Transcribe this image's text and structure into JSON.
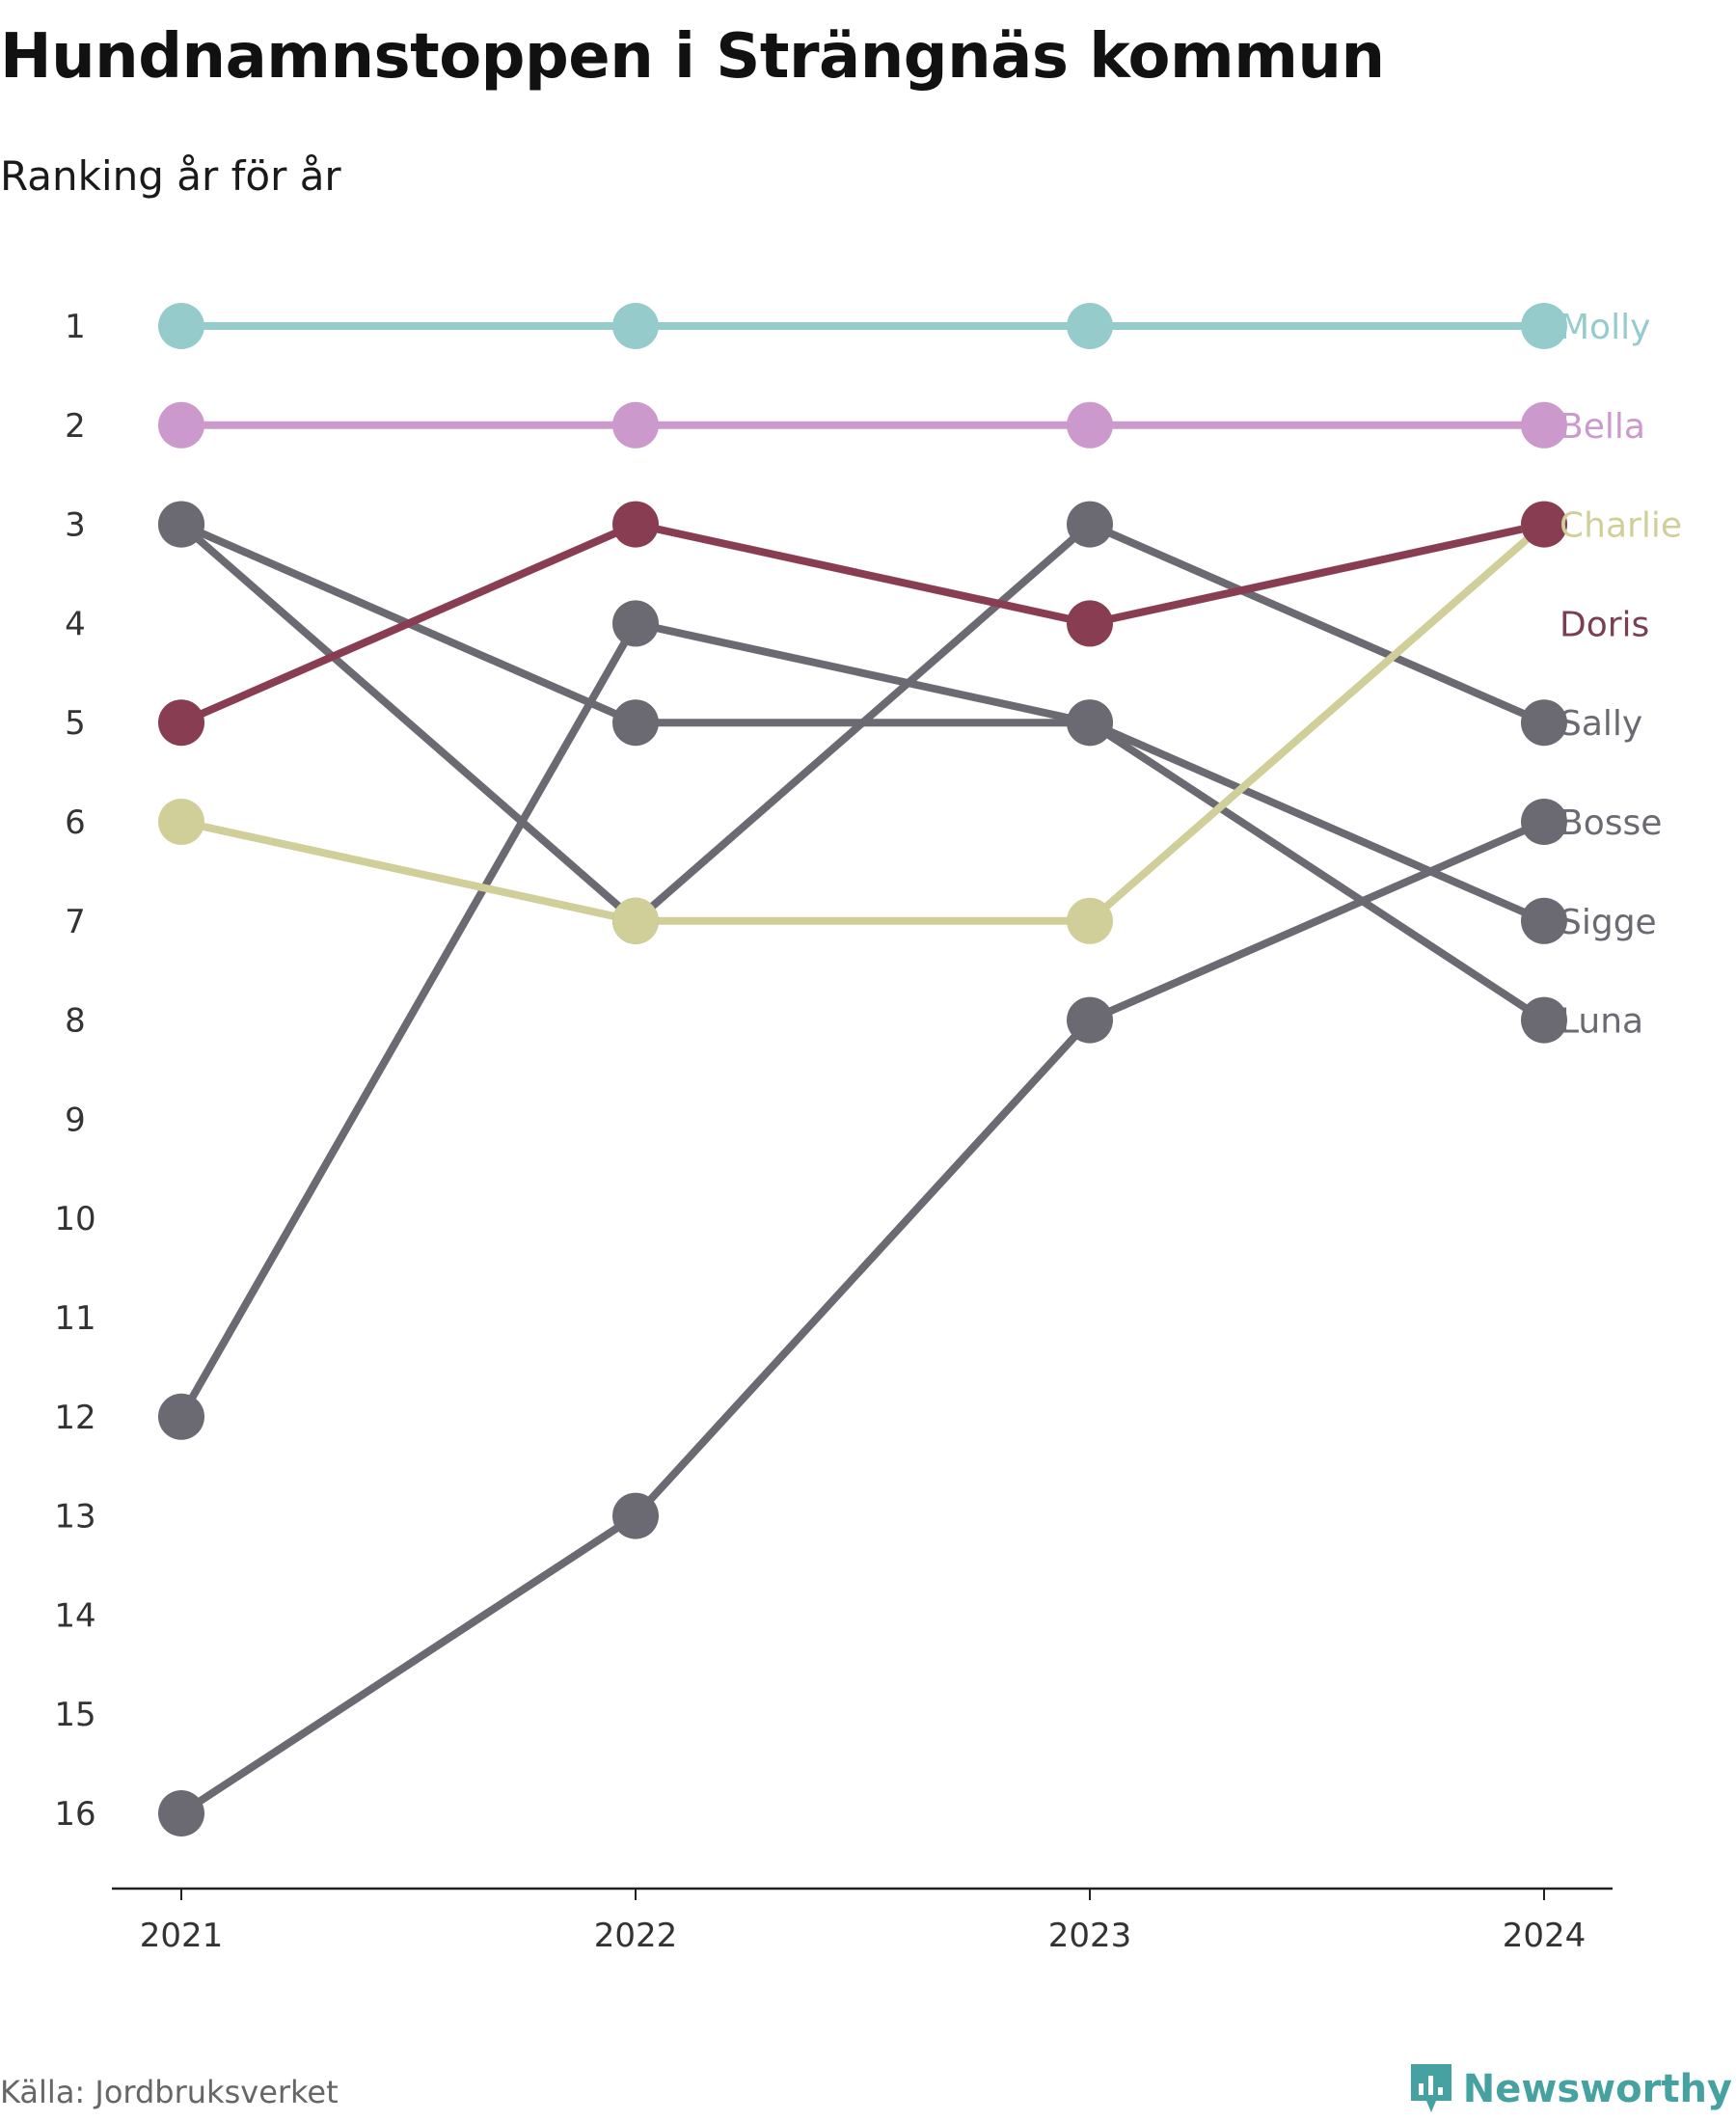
{
  "title": "Hundnamnstoppen i Strängnäs kommun",
  "subtitle": "Ranking år för år",
  "footer": {
    "source": "Källa: Jordbruksverket",
    "brand": "Newsworthy",
    "brand_icon": "newsworthy-logo-icon"
  },
  "chart_data": {
    "type": "line",
    "title": "Hundnamnstoppen i Strängnäs kommun",
    "subtitle": "Ranking år för år",
    "x": [
      "2021",
      "2022",
      "2023",
      "2024"
    ],
    "y_ticks": [
      "1",
      "2",
      "3",
      "4",
      "5",
      "6",
      "7",
      "8",
      "9",
      "10",
      "11",
      "12",
      "13",
      "14",
      "15",
      "16"
    ],
    "ylim": [
      1,
      16
    ],
    "y_reversed": true,
    "grid": false,
    "legend": "labels at right end of lines",
    "series": [
      {
        "name": "Molly",
        "color": "#96cbcb",
        "label_color": "#96cbcb",
        "values": [
          1,
          1,
          1,
          1
        ]
      },
      {
        "name": "Bella",
        "color": "#cc99cc",
        "label_color": "#cc99cc",
        "values": [
          2,
          2,
          2,
          2
        ]
      },
      {
        "name": "Charlie",
        "color": "#d0cf9a",
        "label_color": "#d0cf9a",
        "values": [
          6,
          7,
          7,
          3
        ]
      },
      {
        "name": "Doris",
        "color": "#883d53",
        "label_color": "#7a3e55",
        "values": [
          5,
          3,
          4,
          3
        ]
      },
      {
        "name": "Sally",
        "color": "#6b6a72",
        "label_color": "#6b6a72",
        "values": [
          3,
          7,
          3,
          5
        ]
      },
      {
        "name": "Bosse",
        "color": "#6b6a72",
        "label_color": "#6b6a72",
        "values": [
          16,
          13,
          8,
          6
        ]
      },
      {
        "name": "Sigge",
        "color": "#6b6a72",
        "label_color": "#6b6a72",
        "values": [
          3,
          5,
          5,
          7
        ]
      },
      {
        "name": "Luna",
        "color": "#6b6a72",
        "label_color": "#6b6a72",
        "values": [
          12,
          4,
          5,
          8
        ]
      }
    ]
  }
}
